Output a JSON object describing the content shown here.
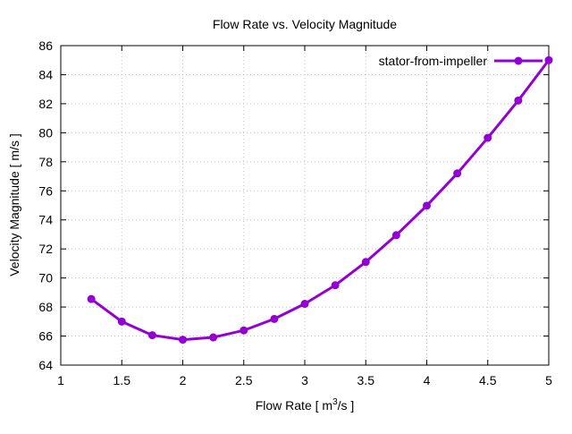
{
  "chart_data": {
    "type": "line",
    "title": "Flow Rate vs. Velocity Magnitude",
    "xlabel": "Flow Rate [ m",
    "xlabel_sup": "3",
    "xlabel_tail": "/s ]",
    "ylabel": "Velocity Magnitude [ m/s ]",
    "xlim": [
      1,
      5
    ],
    "ylim": [
      64,
      86
    ],
    "xticks": [
      "1",
      "1.5",
      "2",
      "2.5",
      "3",
      "3.5",
      "4",
      "4.5",
      "5"
    ],
    "xtick_values": [
      1,
      1.5,
      2,
      2.5,
      3,
      3.5,
      4,
      4.5,
      5
    ],
    "yticks": [
      "64",
      "66",
      "68",
      "70",
      "72",
      "74",
      "76",
      "78",
      "80",
      "82",
      "84",
      "86"
    ],
    "ytick_values": [
      64,
      66,
      68,
      70,
      72,
      74,
      76,
      78,
      80,
      82,
      84,
      86
    ],
    "grid": true,
    "legend_position": "top-right",
    "series": [
      {
        "name": "stator-from-impeller",
        "color": "#9400d3",
        "x": [
          1.25,
          1.5,
          1.75,
          2.0,
          2.25,
          2.5,
          2.75,
          3.0,
          3.25,
          3.5,
          3.75,
          4.0,
          4.25,
          4.5,
          4.75,
          5.0
        ],
        "y": [
          68.55,
          67.0,
          66.06,
          65.75,
          65.91,
          66.39,
          67.18,
          68.22,
          69.5,
          71.1,
          72.95,
          74.98,
          77.2,
          79.65,
          82.22,
          85.0
        ]
      }
    ]
  }
}
